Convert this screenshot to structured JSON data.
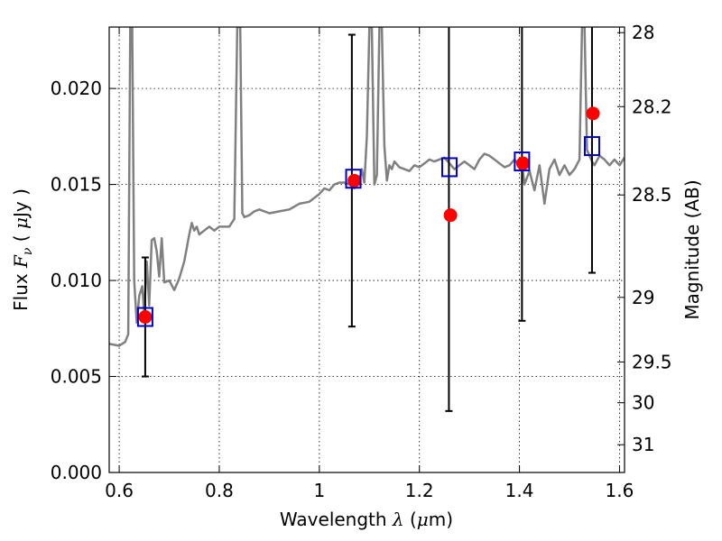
{
  "chart_data": {
    "type": "scatter",
    "xlabel": "Wavelength  λ (μm)",
    "ylabel": "Flux  Fν  ( μJy )",
    "y2label": "Magnitude (AB)",
    "xlim": [
      0.58,
      1.61
    ],
    "ylim": [
      0.0,
      0.0232
    ],
    "grid": true,
    "x_ticks": [
      0.6,
      0.8,
      1.0,
      1.2,
      1.4,
      1.6
    ],
    "x_tick_labels": [
      "0.6",
      "0.8",
      "1",
      "1.2",
      "1.4",
      "1.6"
    ],
    "y_ticks": [
      0.0,
      0.005,
      0.01,
      0.015,
      0.02
    ],
    "y_tick_labels": [
      "0.000",
      "0.005",
      "0.010",
      "0.015",
      "0.020"
    ],
    "y2_ticks": [
      28,
      28.2,
      28.5,
      29,
      29.5,
      30,
      31
    ],
    "y2_tick_labels": [
      "28",
      "28.2",
      "28.5",
      "29",
      "29.5",
      "30",
      "31"
    ],
    "series": [
      {
        "style": "line",
        "color": "#808080",
        "x": [
          0.58,
          0.6,
          0.612,
          0.618,
          0.622,
          0.626,
          0.63,
          0.635,
          0.64,
          0.646,
          0.65,
          0.655,
          0.66,
          0.665,
          0.67,
          0.675,
          0.68,
          0.685,
          0.69,
          0.7,
          0.71,
          0.72,
          0.73,
          0.74,
          0.745,
          0.75,
          0.755,
          0.76,
          0.77,
          0.78,
          0.79,
          0.8,
          0.81,
          0.82,
          0.83,
          0.836,
          0.838,
          0.842,
          0.846,
          0.85,
          0.86,
          0.87,
          0.88,
          0.9,
          0.92,
          0.94,
          0.96,
          0.98,
          1.0,
          1.01,
          1.02,
          1.03,
          1.04,
          1.05,
          1.06,
          1.07,
          1.08,
          1.085,
          1.09,
          1.095,
          1.1,
          1.105,
          1.11,
          1.115,
          1.12,
          1.125,
          1.13,
          1.135,
          1.14,
          1.145,
          1.15,
          1.16,
          1.17,
          1.18,
          1.19,
          1.2,
          1.21,
          1.22,
          1.23,
          1.24,
          1.25,
          1.26,
          1.27,
          1.28,
          1.29,
          1.3,
          1.31,
          1.32,
          1.33,
          1.34,
          1.35,
          1.36,
          1.37,
          1.38,
          1.39,
          1.4,
          1.405,
          1.41,
          1.42,
          1.43,
          1.44,
          1.45,
          1.46,
          1.47,
          1.48,
          1.49,
          1.5,
          1.51,
          1.52,
          1.525,
          1.53,
          1.535,
          1.54,
          1.545,
          1.55,
          1.56,
          1.57,
          1.58,
          1.59,
          1.6,
          1.61
        ],
        "y": [
          0.0067,
          0.0066,
          0.0068,
          0.0072,
          0.0232,
          0.0232,
          0.01,
          0.0078,
          0.0092,
          0.0097,
          0.0083,
          0.011,
          0.0087,
          0.0121,
          0.0122,
          0.0115,
          0.0102,
          0.0122,
          0.0099,
          0.01,
          0.0095,
          0.0101,
          0.011,
          0.0124,
          0.013,
          0.0126,
          0.0128,
          0.0124,
          0.0126,
          0.0128,
          0.0126,
          0.0128,
          0.0128,
          0.0128,
          0.0132,
          0.0232,
          0.0232,
          0.0232,
          0.0135,
          0.0133,
          0.0134,
          0.0136,
          0.0137,
          0.0135,
          0.0136,
          0.0137,
          0.014,
          0.0141,
          0.0145,
          0.0148,
          0.0147,
          0.015,
          0.0151,
          0.0151,
          0.015,
          0.0148,
          0.0152,
          0.0158,
          0.0151,
          0.0175,
          0.0232,
          0.0232,
          0.015,
          0.0155,
          0.0232,
          0.0232,
          0.017,
          0.0152,
          0.016,
          0.0158,
          0.0162,
          0.0159,
          0.0158,
          0.0157,
          0.016,
          0.0159,
          0.0161,
          0.0163,
          0.0162,
          0.0163,
          0.0164,
          0.0161,
          0.0158,
          0.016,
          0.0162,
          0.016,
          0.0158,
          0.0163,
          0.0166,
          0.0165,
          0.0163,
          0.0161,
          0.0159,
          0.016,
          0.0163,
          0.016,
          0.0161,
          0.015,
          0.0157,
          0.0147,
          0.016,
          0.014,
          0.0158,
          0.0163,
          0.0155,
          0.016,
          0.0155,
          0.0158,
          0.0163,
          0.0232,
          0.0232,
          0.0168,
          0.0165,
          0.0162,
          0.016,
          0.0165,
          0.0163,
          0.016,
          0.0163,
          0.016,
          0.0164
        ]
      },
      {
        "style": "errorbar",
        "color": "#000000",
        "x": [
          0.652,
          1.065,
          1.259,
          1.405,
          1.545
        ],
        "low": [
          0.005,
          0.0076,
          0.0032,
          0.0079,
          0.0104
        ],
        "high": [
          0.0112,
          0.0228,
          0.0232,
          0.0232,
          0.0232
        ]
      },
      {
        "style": "points",
        "marker": "circle",
        "color": "#ff0000",
        "x": [
          0.652,
          1.07,
          1.262,
          1.407,
          1.547
        ],
        "y": [
          0.0081,
          0.0152,
          0.0134,
          0.0161,
          0.0187
        ]
      },
      {
        "style": "points",
        "marker": "open-square",
        "color": "#0000cc",
        "x": [
          0.652,
          1.068,
          1.26,
          1.405,
          1.545
        ],
        "y": [
          0.0081,
          0.0153,
          0.0159,
          0.0162,
          0.017
        ]
      }
    ]
  }
}
